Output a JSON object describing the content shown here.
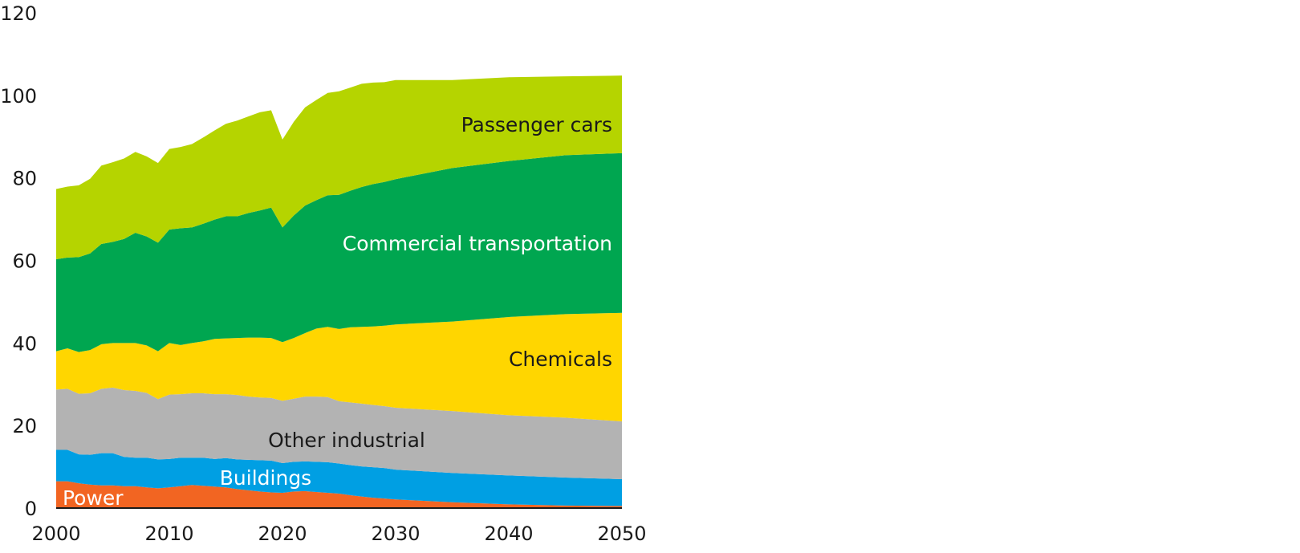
{
  "chart_data": {
    "type": "area",
    "stacked": true,
    "title": "",
    "xlabel": "",
    "ylabel": "",
    "xlim": [
      2000,
      2050
    ],
    "ylim": [
      0,
      120
    ],
    "grid": false,
    "legend": "inline labels",
    "x_ticks": [
      "2000",
      "2010",
      "2020",
      "2030",
      "2040",
      "2050"
    ],
    "y_ticks": [
      "0",
      "20",
      "40",
      "60",
      "80",
      "100",
      "120"
    ],
    "x": [
      2000,
      2001,
      2002,
      2003,
      2004,
      2005,
      2006,
      2007,
      2008,
      2009,
      2010,
      2011,
      2012,
      2013,
      2014,
      2015,
      2016,
      2017,
      2018,
      2019,
      2020,
      2021,
      2022,
      2023,
      2024,
      2025,
      2026,
      2027,
      2028,
      2029,
      2030,
      2035,
      2040,
      2045,
      2050
    ],
    "series": [
      {
        "name": "Power",
        "color": "#f26522",
        "values": [
          6.5,
          6.5,
          6.0,
          5.7,
          5.5,
          5.5,
          5.3,
          5.3,
          5.0,
          4.8,
          5.0,
          5.3,
          5.6,
          5.4,
          5.2,
          5.0,
          4.6,
          4.3,
          4.0,
          3.8,
          3.7,
          4.0,
          4.1,
          3.9,
          3.7,
          3.5,
          3.1,
          2.8,
          2.5,
          2.3,
          2.1,
          1.4,
          0.9,
          0.6,
          0.5
        ]
      },
      {
        "name": "Buildings",
        "color": "#009fe3",
        "values": [
          7.6,
          7.6,
          7.0,
          7.2,
          7.8,
          7.8,
          7.1,
          6.9,
          7.2,
          7.0,
          6.9,
          6.9,
          6.6,
          6.8,
          6.7,
          7.1,
          7.2,
          7.4,
          7.6,
          7.7,
          7.2,
          7.2,
          7.2,
          7.3,
          7.4,
          7.3,
          7.3,
          7.3,
          7.4,
          7.4,
          7.2,
          7.1,
          7.0,
          6.8,
          6.5
        ]
      },
      {
        "name": "Other industrial",
        "color": "#b3b3b3",
        "values": [
          14.6,
          14.8,
          14.7,
          14.9,
          15.6,
          15.9,
          16.2,
          16.2,
          15.7,
          14.6,
          15.6,
          15.4,
          15.6,
          15.6,
          15.7,
          15.5,
          15.6,
          15.3,
          15.2,
          15.2,
          15.1,
          15.3,
          15.7,
          15.8,
          15.8,
          15.1,
          15.2,
          15.2,
          15.1,
          15.0,
          15.0,
          15.0,
          14.6,
          14.5,
          14.0
        ]
      },
      {
        "name": "Chemicals",
        "color": "#ffd600",
        "values": [
          9.3,
          9.8,
          10.1,
          10.5,
          10.8,
          10.8,
          11.4,
          11.6,
          11.5,
          11.6,
          12.5,
          11.9,
          12.2,
          12.6,
          13.4,
          13.5,
          13.8,
          14.3,
          14.5,
          14.5,
          14.2,
          14.7,
          15.4,
          16.5,
          17.0,
          17.5,
          18.2,
          18.6,
          19.0,
          19.5,
          20.2,
          21.7,
          23.8,
          25.1,
          26.3
        ]
      },
      {
        "name": "Commercial transportation",
        "color": "#00a650",
        "values": [
          22.3,
          22.0,
          23.0,
          23.4,
          24.3,
          24.5,
          25.2,
          26.7,
          26.4,
          26.3,
          27.5,
          28.3,
          28.0,
          28.5,
          28.9,
          29.6,
          29.5,
          30.2,
          30.8,
          31.6,
          27.8,
          29.7,
          30.9,
          31.1,
          31.9,
          32.5,
          33.1,
          33.9,
          34.5,
          34.8,
          35.2,
          37.2,
          37.8,
          38.5,
          38.7
        ]
      },
      {
        "name": "Passenger cars",
        "color": "#b5d400",
        "values": [
          17.0,
          17.2,
          17.4,
          18.1,
          19.0,
          19.3,
          19.5,
          19.6,
          19.4,
          19.3,
          19.5,
          19.7,
          20.2,
          20.9,
          21.6,
          22.4,
          23.2,
          23.4,
          23.8,
          23.6,
          21.3,
          22.7,
          23.8,
          24.3,
          24.8,
          25.1,
          25.0,
          25.0,
          24.6,
          24.2,
          24.0,
          21.3,
          20.3,
          19.1,
          18.8
        ]
      }
    ]
  },
  "labels": {
    "passenger_cars": "Passenger cars",
    "commercial": "Commercial transportation",
    "chemicals": "Chemicals",
    "other_industrial": "Other industrial",
    "buildings": "Buildings",
    "power": "Power"
  },
  "label_colors": {
    "passenger_cars": "#1a1a1a",
    "commercial": "#ffffff",
    "chemicals": "#1a1a1a",
    "other_industrial": "#1a1a1a",
    "buildings": "#ffffff",
    "power": "#ffffff"
  }
}
